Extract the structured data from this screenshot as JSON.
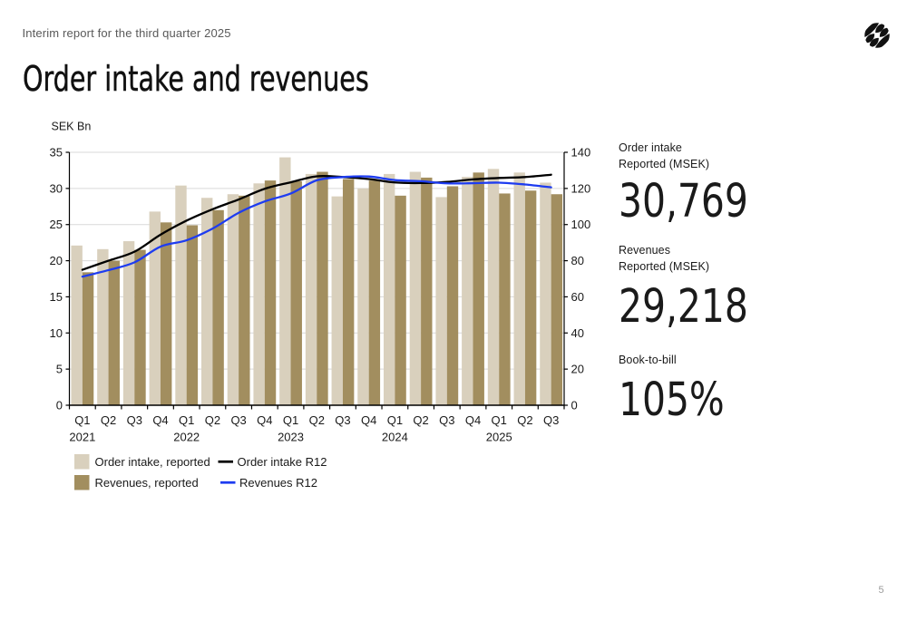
{
  "page": {
    "eyebrow": "Interim report for the third quarter 2025",
    "title": "Order intake and revenues",
    "page_number": "5",
    "logo_icon": "striped-sphere-logo"
  },
  "stats": [
    {
      "label_line1": "Order intake",
      "label_line2": "Reported (MSEK)",
      "value": "30,769"
    },
    {
      "label_line1": "Revenues",
      "label_line2": "Reported (MSEK)",
      "value": "29,218"
    },
    {
      "label_line1": "Book-to-bill",
      "label_line2": "",
      "value": "105%"
    }
  ],
  "chart_data": {
    "type": "combo-bar-line",
    "unit_label": "SEK Bn",
    "left_axis": {
      "min": 0,
      "max": 35,
      "step": 5,
      "ticks": [
        "0",
        "5",
        "10",
        "15",
        "20",
        "25",
        "30",
        "35"
      ]
    },
    "right_axis": {
      "min": 0,
      "max": 140,
      "step": 20,
      "ticks": [
        "0",
        "20",
        "40",
        "60",
        "80",
        "100",
        "120",
        "140"
      ]
    },
    "grid": true,
    "categories": [
      "Q1",
      "Q2",
      "Q3",
      "Q4",
      "Q1",
      "Q2",
      "Q3",
      "Q4",
      "Q1",
      "Q2",
      "Q3",
      "Q4",
      "Q1",
      "Q2",
      "Q3",
      "Q4",
      "Q1",
      "Q2",
      "Q3"
    ],
    "year_labels": {
      "0": "2021",
      "4": "2022",
      "8": "2023",
      "12": "2024",
      "16": "2025"
    },
    "series": [
      {
        "name": "Order intake, reported",
        "type": "bar",
        "axis": "left",
        "color": "#d9d0bd",
        "values": [
          22.1,
          21.6,
          22.7,
          26.8,
          30.4,
          28.7,
          29.2,
          30.7,
          34.3,
          32.0,
          28.9,
          30.0,
          32.0,
          32.3,
          28.8,
          31.6,
          32.7,
          32.2,
          30.8
        ]
      },
      {
        "name": "Revenues, reported",
        "type": "bar",
        "axis": "left",
        "color": "#a28e5f",
        "values": [
          18.4,
          20.0,
          21.5,
          25.3,
          24.9,
          27.0,
          29.0,
          31.1,
          31.0,
          32.3,
          31.3,
          31.1,
          29.0,
          31.5,
          30.3,
          32.2,
          29.3,
          29.7,
          29.2
        ]
      },
      {
        "name": "Order intake R12",
        "type": "line",
        "axis": "right",
        "color": "#000000",
        "values": [
          75,
          80,
          85,
          94.4,
          102.2,
          108.5,
          113.9,
          119.8,
          123.4,
          126.7,
          126.3,
          125.2,
          123.3,
          123.0,
          123.6,
          125.0,
          125.8,
          126.3,
          127.6
        ]
      },
      {
        "name": "Revenues R12",
        "type": "line",
        "axis": "right",
        "color": "#1e3cf0",
        "values": [
          71.2,
          74.8,
          79.1,
          87.8,
          91.3,
          97.8,
          106.5,
          112.8,
          117.2,
          124.5,
          126.3,
          126.6,
          124.6,
          124.0,
          122.8,
          122.9,
          123.2,
          122.2,
          120.6
        ]
      }
    ],
    "legend": [
      {
        "swatch": "bar",
        "color": "#d9d0bd",
        "label": "Order intake, reported"
      },
      {
        "swatch": "line",
        "color": "#000000",
        "label": "Order intake R12"
      },
      {
        "swatch": "bar",
        "color": "#a28e5f",
        "label": "Revenues, reported"
      },
      {
        "swatch": "line",
        "color": "#1e3cf0",
        "label": "Revenues R12"
      }
    ]
  }
}
